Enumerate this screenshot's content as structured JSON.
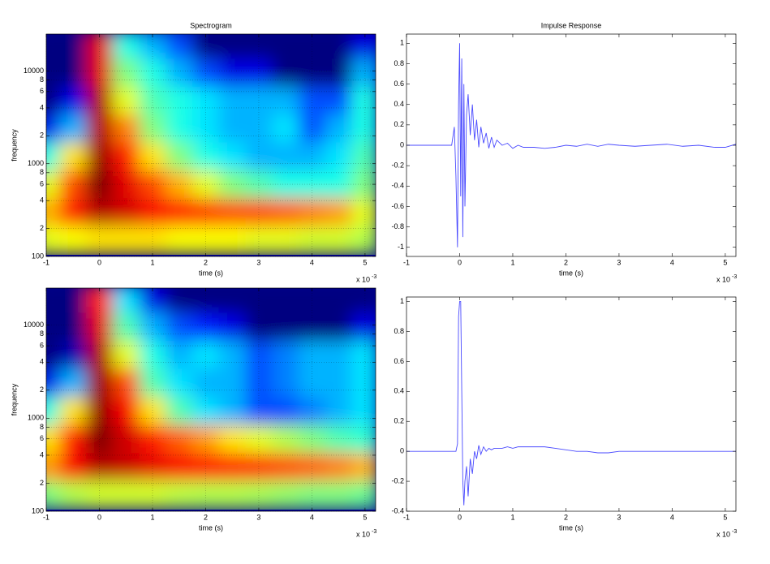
{
  "chart_data": [
    {
      "type": "heatmap",
      "title": "Spectrogram",
      "xlabel": "time (s)",
      "ylabel": "frequency",
      "x_exponent": {
        "base": "x 10",
        "power": "-3"
      },
      "x": [
        -1,
        -0.5,
        0,
        0.5,
        1,
        1.5,
        2,
        2.5,
        3,
        3.5,
        4,
        4.5,
        5
      ],
      "y": [
        19200,
        9600,
        4800,
        2400,
        1200,
        600,
        300,
        150
      ],
      "z": [
        [
          0,
          0,
          0.9,
          0.4,
          0.3,
          0.2,
          0,
          0,
          0,
          0,
          0,
          0,
          0.1
        ],
        [
          0,
          0,
          0.9,
          0.5,
          0.4,
          0.3,
          0.2,
          0.1,
          0.1,
          0,
          0,
          0,
          0.3
        ],
        [
          0,
          0.1,
          0.95,
          0.6,
          0.45,
          0.4,
          0.35,
          0.3,
          0.3,
          0.3,
          0.2,
          0.2,
          0.4
        ],
        [
          0.1,
          0.3,
          0.95,
          0.75,
          0.5,
          0.4,
          0.35,
          0.3,
          0.3,
          0.35,
          0.2,
          0.3,
          0.4
        ],
        [
          0.4,
          0.65,
          0.97,
          0.85,
          0.65,
          0.5,
          0.4,
          0.35,
          0.3,
          0.3,
          0.3,
          0.35,
          0.45
        ],
        [
          0.6,
          0.8,
          1,
          0.9,
          0.8,
          0.7,
          0.6,
          0.5,
          0.45,
          0.4,
          0.4,
          0.4,
          0.5
        ],
        [
          0.7,
          0.85,
          0.95,
          0.92,
          0.88,
          0.85,
          0.82,
          0.8,
          0.8,
          0.78,
          0.75,
          0.72,
          0.6
        ],
        [
          0.6,
          0.62,
          0.65,
          0.65,
          0.65,
          0.62,
          0.62,
          0.62,
          0.6,
          0.6,
          0.58,
          0.58,
          0.55
        ]
      ],
      "xlim": [
        -1,
        5.2
      ],
      "xticks": [
        -1,
        0,
        1,
        2,
        3,
        4,
        5
      ],
      "ylim": [
        100,
        25000
      ],
      "ylog": true,
      "grid": true,
      "yticks": [
        100,
        {
          "value": 200,
          "label": "2"
        },
        {
          "value": 400,
          "label": "4"
        },
        {
          "value": 600,
          "label": "6"
        },
        {
          "value": 800,
          "label": "8"
        },
        1000,
        {
          "value": 2000,
          "label": "2"
        },
        {
          "value": 4000,
          "label": "4"
        },
        {
          "value": 6000,
          "label": "6"
        },
        {
          "value": 8000,
          "label": "8"
        },
        10000
      ]
    },
    {
      "type": "line",
      "title": "Impulse Response",
      "xlabel": "time (s)",
      "x_exponent": {
        "base": "x 10",
        "power": "-3"
      },
      "x": [
        -1,
        -0.15,
        -0.1,
        -0.07,
        -0.04,
        -0.02,
        0,
        0.02,
        0.04,
        0.06,
        0.08,
        0.1,
        0.13,
        0.16,
        0.2,
        0.24,
        0.28,
        0.32,
        0.36,
        0.4,
        0.45,
        0.5,
        0.55,
        0.6,
        0.65,
        0.7,
        0.8,
        0.9,
        1.0,
        1.1,
        1.2,
        1.4,
        1.6,
        1.8,
        2.0,
        2.2,
        2.4,
        2.6,
        2.8,
        3.0,
        3.3,
        3.6,
        3.9,
        4.2,
        4.5,
        4.8,
        5.0,
        5.2
      ],
      "series": [
        {
          "color": "#4a4aff",
          "values": [
            0,
            0,
            0.18,
            -0.3,
            -1,
            0.4,
            1,
            -0.5,
            0.85,
            -0.9,
            0.6,
            -0.6,
            0.3,
            0.5,
            0.1,
            0.4,
            0.05,
            0.25,
            -0.02,
            0.18,
            0.02,
            0.12,
            -0.03,
            0.08,
            -0.02,
            0.05,
            0.0,
            0.02,
            -0.03,
            0.0,
            -0.02,
            -0.02,
            -0.03,
            -0.02,
            0.0,
            -0.01,
            0.01,
            -0.01,
            0.01,
            0.0,
            -0.01,
            0.0,
            0.01,
            -0.01,
            0.0,
            -0.02,
            -0.02,
            0.01
          ]
        }
      ],
      "xlim": [
        -1,
        5.2
      ],
      "xticks": [
        -1,
        0,
        1,
        2,
        3,
        4,
        5
      ],
      "ylim": [
        -1.09,
        1.09
      ],
      "yticks": [
        -1,
        -0.8,
        -0.6,
        -0.4,
        -0.2,
        0,
        0.2,
        0.4,
        0.6,
        0.8,
        1
      ]
    },
    {
      "type": "heatmap",
      "xlabel": "time (s)",
      "ylabel": "frequency",
      "x_exponent": {
        "base": "x 10",
        "power": "-3"
      },
      "x": [
        -1,
        -0.5,
        0,
        0.5,
        1,
        1.5,
        2,
        2.5,
        3,
        3.5,
        4,
        4.5,
        5
      ],
      "y": [
        19200,
        9600,
        4800,
        2400,
        1200,
        600,
        300,
        150
      ],
      "z": [
        [
          0,
          0,
          0.85,
          0.35,
          0.1,
          0,
          0,
          0,
          0,
          0,
          0,
          0,
          0
        ],
        [
          0,
          0,
          0.9,
          0.45,
          0.3,
          0.2,
          0.15,
          0.1,
          0,
          0,
          0,
          0,
          0.1
        ],
        [
          0,
          0.05,
          0.95,
          0.6,
          0.4,
          0.3,
          0.35,
          0.3,
          0.2,
          0.25,
          0.3,
          0.3,
          0.35
        ],
        [
          0.1,
          0.3,
          0.97,
          0.8,
          0.45,
          0.35,
          0.3,
          0.3,
          0.2,
          0.25,
          0.3,
          0.3,
          0.35
        ],
        [
          0.4,
          0.65,
          0.98,
          0.88,
          0.65,
          0.45,
          0.35,
          0.3,
          0.2,
          0.2,
          0.25,
          0.3,
          0.35
        ],
        [
          0.65,
          0.85,
          1,
          0.92,
          0.85,
          0.78,
          0.72,
          0.65,
          0.6,
          0.55,
          0.5,
          0.45,
          0.42
        ],
        [
          0.72,
          0.88,
          0.95,
          0.93,
          0.9,
          0.88,
          0.86,
          0.84,
          0.83,
          0.8,
          0.78,
          0.75,
          0.7
        ],
        [
          0.5,
          0.55,
          0.58,
          0.58,
          0.58,
          0.56,
          0.55,
          0.55,
          0.54,
          0.52,
          0.5,
          0.5,
          0.48
        ]
      ],
      "xlim": [
        -1,
        5.2
      ],
      "xticks": [
        -1,
        0,
        1,
        2,
        3,
        4,
        5
      ],
      "ylim": [
        100,
        25000
      ],
      "ylog": true,
      "grid": true,
      "yticks": [
        100,
        {
          "value": 200,
          "label": "2"
        },
        {
          "value": 400,
          "label": "4"
        },
        {
          "value": 600,
          "label": "6"
        },
        {
          "value": 800,
          "label": "8"
        },
        1000,
        {
          "value": 2000,
          "label": "2"
        },
        {
          "value": 4000,
          "label": "4"
        },
        {
          "value": 6000,
          "label": "6"
        },
        {
          "value": 8000,
          "label": "8"
        },
        10000
      ]
    },
    {
      "type": "line",
      "xlabel": "time (s)",
      "x_exponent": {
        "base": "x 10",
        "power": "-3"
      },
      "x": [
        -1,
        -0.15,
        -0.1,
        -0.07,
        -0.04,
        -0.02,
        0,
        0.02,
        0.04,
        0.06,
        0.08,
        0.1,
        0.13,
        0.16,
        0.2,
        0.24,
        0.28,
        0.32,
        0.36,
        0.4,
        0.45,
        0.5,
        0.55,
        0.6,
        0.65,
        0.7,
        0.8,
        0.9,
        1.0,
        1.1,
        1.2,
        1.4,
        1.6,
        1.8,
        2.0,
        2.2,
        2.4,
        2.6,
        2.8,
        3.0,
        3.3,
        3.6,
        3.9,
        4.2,
        4.5,
        4.8,
        5.0,
        5.2
      ],
      "series": [
        {
          "color": "#4a4aff",
          "values": [
            0,
            0,
            0,
            0,
            0.05,
            0.9,
            1,
            1,
            0.4,
            -0.2,
            -0.36,
            -0.2,
            -0.1,
            -0.3,
            -0.05,
            -0.15,
            0.0,
            -0.05,
            0.04,
            -0.02,
            0.03,
            0.0,
            0.02,
            0.01,
            0.02,
            0.02,
            0.02,
            0.03,
            0.02,
            0.03,
            0.03,
            0.03,
            0.03,
            0.02,
            0.01,
            0.0,
            0.0,
            -0.01,
            -0.01,
            0.0,
            0.0,
            0.0,
            0.0,
            0.0,
            0.0,
            0.0,
            0.0,
            0.0
          ]
        }
      ],
      "xlim": [
        -1,
        5.2
      ],
      "xticks": [
        -1,
        0,
        1,
        2,
        3,
        4,
        5
      ],
      "ylim": [
        -0.4,
        1.03
      ],
      "yticks": [
        -0.4,
        -0.2,
        0,
        0.2,
        0.4,
        0.6,
        0.8,
        1
      ]
    }
  ]
}
